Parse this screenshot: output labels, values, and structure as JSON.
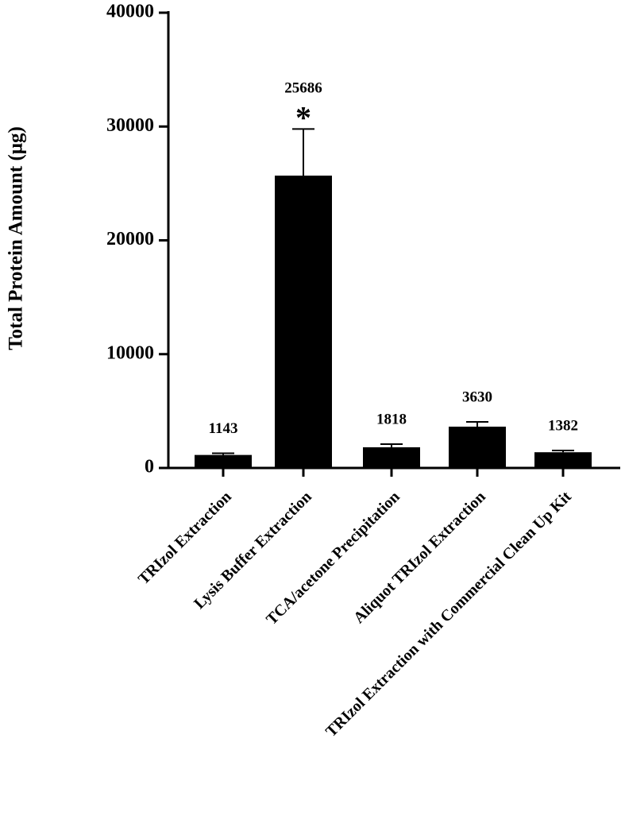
{
  "chart_data": {
    "type": "bar",
    "y_label": "Total Protein Amount (μg)",
    "categories": [
      "TRIzol Extraction",
      "Lysis Buffer Extraction",
      "TCA/acetone Precipitation",
      "Aliquot TRIzol Extraction",
      "TRIzol Extraction with Commercial Clean Up Kit"
    ],
    "values": [
      1143,
      25686,
      1818,
      3630,
      1382
    ],
    "errors": [
      150,
      4100,
      280,
      420,
      150
    ],
    "annotations": [
      null,
      "*",
      null,
      null,
      null
    ],
    "color": "#000000",
    "ylim": [
      0,
      40000
    ],
    "yticks": [
      0,
      10000,
      20000,
      30000,
      40000
    ]
  }
}
